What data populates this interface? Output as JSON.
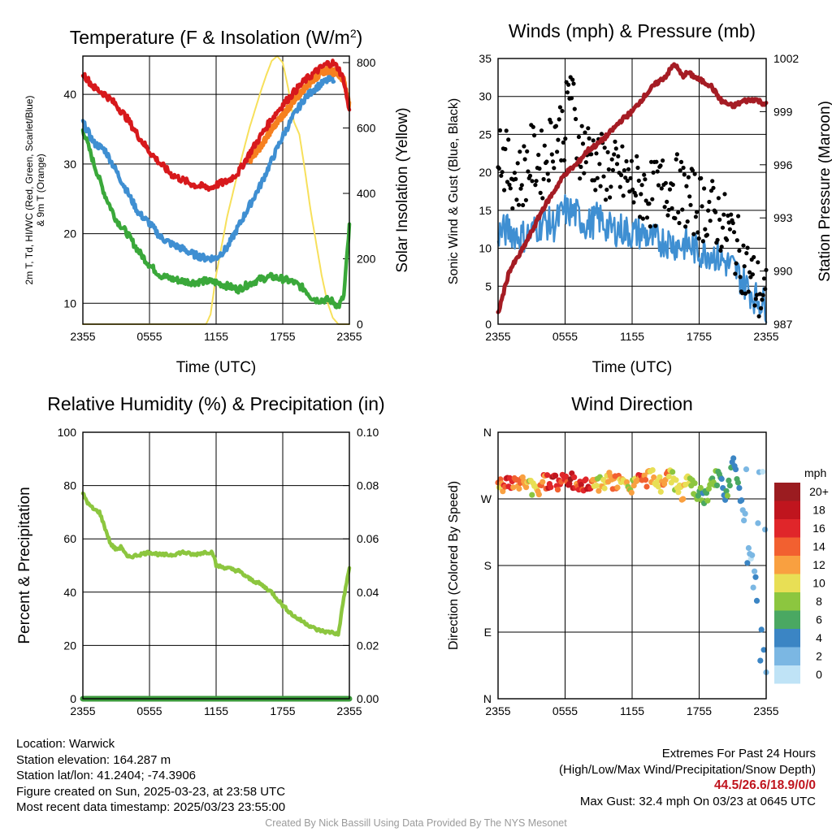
{
  "colors": {
    "red": "#d7191c",
    "scarlet": "#c0151e",
    "orange": "#f6801f",
    "blue": "#3f8fd2",
    "green": "#3aa83a",
    "yellow": "#f7e05b",
    "maroon": "#a51c24",
    "rh_green": "#8cc63f",
    "precip_green": "#3c9a3c",
    "credit_gray": "#9a9a9a"
  },
  "chart_data": [
    {
      "id": "temperature",
      "type": "line",
      "title": "Temperature (F) & Insolation (W/m²)",
      "xlabel": "Time (UTC)",
      "ylabel": "2m T, Td, HI/WC (Red, Green, Scarlet/Blue) & 9m T (Orange)",
      "y2label": "Solar Insolation (Yellow)",
      "xticks": [
        "2355",
        "0555",
        "1155",
        "1755",
        "2355"
      ],
      "ylim": [
        7,
        45.5
      ],
      "yticks": [
        10,
        20,
        30,
        40
      ],
      "y2lim": [
        0,
        820
      ],
      "y2ticks": [
        0,
        200,
        400,
        600,
        800
      ],
      "x_hours": [
        0,
        24
      ],
      "series": [
        {
          "name": "2m T",
          "axis": "left",
          "color": "red",
          "x": [
            0,
            1,
            2,
            3,
            4,
            5,
            6,
            7,
            8,
            9,
            10,
            11,
            11.6,
            12,
            13,
            14,
            15,
            16,
            17,
            18,
            19,
            20,
            21,
            22,
            22.5,
            23,
            23.5,
            24
          ],
          "y": [
            43,
            41,
            40,
            38.5,
            36.5,
            34,
            31.8,
            30,
            28.5,
            27.7,
            27,
            26.7,
            26.6,
            27,
            27.5,
            28.8,
            31.5,
            34,
            36.5,
            38.5,
            40.3,
            42,
            43.3,
            44.4,
            44.5,
            43.8,
            42,
            37.5
          ]
        },
        {
          "name": "9m T",
          "axis": "left",
          "color": "orange",
          "x": [
            15,
            16,
            17,
            18,
            19,
            20,
            21,
            22,
            23,
            23.5,
            24
          ],
          "y": [
            30.5,
            32.5,
            35,
            37,
            39,
            41,
            42.5,
            43.5,
            43,
            42,
            38.5
          ]
        },
        {
          "name": "HI/WC",
          "axis": "left",
          "color": "blue",
          "x": [
            0,
            1,
            2,
            3,
            4,
            5,
            6,
            7,
            8,
            9,
            10,
            11,
            12,
            13,
            14,
            15,
            16,
            17,
            18,
            19,
            20,
            21,
            22,
            22.6
          ],
          "y": [
            36,
            33,
            32,
            29,
            26,
            23,
            21.5,
            19.5,
            18.5,
            17.8,
            17,
            16.5,
            16.5,
            18,
            21,
            24,
            27,
            30.5,
            34,
            37,
            39.5,
            41,
            42,
            42.3
          ]
        },
        {
          "name": "Td",
          "axis": "left",
          "color": "green",
          "x": [
            0,
            1,
            2,
            3,
            4,
            5,
            6,
            7,
            8,
            9,
            10,
            11,
            12,
            13,
            14,
            15,
            16,
            17,
            18,
            19,
            20,
            20.5,
            21,
            22,
            22.5,
            23,
            23.5,
            23.7,
            24
          ],
          "y": [
            35,
            30,
            25.5,
            22,
            20,
            17.5,
            15.5,
            14,
            13.5,
            13.2,
            13,
            13.2,
            13,
            12.5,
            12,
            12.8,
            13.5,
            13.8,
            13.5,
            13,
            12,
            11,
            10.5,
            10.5,
            10.3,
            9.5,
            11,
            15,
            21
          ]
        },
        {
          "name": "Solar",
          "axis": "right",
          "color": "yellow",
          "x": [
            0,
            11.1,
            11.5,
            12,
            13,
            14,
            15,
            16,
            16.5,
            17,
            17.5,
            18,
            18.5,
            19,
            19.5,
            20,
            20.5,
            21,
            21.5,
            22,
            22.5,
            23,
            23.5,
            24
          ],
          "y": [
            0,
            0,
            30,
            150,
            330,
            470,
            600,
            710,
            760,
            805,
            820,
            800,
            720,
            620,
            580,
            470,
            350,
            250,
            150,
            70,
            20,
            0,
            0,
            0
          ]
        }
      ]
    },
    {
      "id": "winds",
      "type": "line",
      "title": "Winds (mph) & Pressure (mb)",
      "xlabel": "Time (UTC)",
      "ylabel": "Sonic Wind & Gust (Blue, Black)",
      "y2label": "Station Pressure (Maroon)",
      "xticks": [
        "2355",
        "0555",
        "1155",
        "1755",
        "2355"
      ],
      "ylim": [
        0,
        35
      ],
      "yticks": [
        0,
        5,
        10,
        15,
        20,
        25,
        30,
        35
      ],
      "y2lim": [
        987,
        1002
      ],
      "y2ticks": [
        987,
        990,
        993,
        996,
        999,
        1002
      ],
      "x_hours": [
        0,
        24
      ],
      "series": [
        {
          "name": "Sonic Wind",
          "axis": "left",
          "color": "blue",
          "style": "line",
          "x": [
            0,
            1,
            2,
            3,
            4,
            5,
            6,
            7,
            8,
            9,
            10,
            11,
            12,
            13,
            14,
            15,
            16,
            17,
            18,
            19,
            20,
            21,
            22,
            23,
            24
          ],
          "y": [
            12,
            12.5,
            11.5,
            12,
            13.5,
            13,
            15,
            14.5,
            13,
            14,
            12.5,
            12.5,
            12,
            12,
            11,
            11,
            10.5,
            10.5,
            9.5,
            9.5,
            8.5,
            7.5,
            5.5,
            3.5,
            2.5
          ]
        },
        {
          "name": "Gust",
          "axis": "left",
          "color": "black",
          "style": "scatter",
          "x": [
            0,
            1,
            2,
            3,
            4,
            5,
            6,
            6.5,
            7,
            8,
            9,
            10,
            11,
            12,
            13,
            14,
            15,
            16,
            17,
            18,
            19,
            20,
            21,
            22,
            23,
            24
          ],
          "y": [
            24,
            20,
            19,
            22,
            21,
            25,
            26,
            32.4,
            24,
            23,
            21,
            20,
            19.5,
            18.5,
            17.5,
            17,
            18.5,
            18,
            16.5,
            15.5,
            15,
            13.5,
            11.5,
            8,
            5,
            3
          ]
        },
        {
          "name": "Pressure",
          "axis": "right",
          "color": "maroon",
          "style": "line",
          "x": [
            0,
            1,
            2,
            3,
            4,
            5,
            6,
            7,
            8,
            9,
            10,
            11,
            12,
            13,
            14,
            15,
            15.8,
            16.5,
            17,
            18,
            19,
            20,
            21,
            22,
            23,
            24
          ],
          "y": [
            987.6,
            990,
            991,
            992.2,
            993.5,
            994.5,
            995.5,
            996,
            996.8,
            997.2,
            997.8,
            998.5,
            999,
            999.8,
            1000.5,
            1001,
            1001.7,
            1001,
            1001.2,
            1000.8,
            1000.5,
            999.6,
            999.3,
            999.6,
            999.7,
            999.4
          ]
        }
      ]
    },
    {
      "id": "humidity",
      "type": "line",
      "title": "Relative Humidity (%) & Precipitation (in)",
      "xlabel": "",
      "ylabel": "Percent & Precipitation",
      "xticks": [
        "2355",
        "0555",
        "1155",
        "1755",
        "2355"
      ],
      "ylim": [
        0,
        100
      ],
      "yticks": [
        0,
        20,
        40,
        60,
        80,
        100
      ],
      "y2lim": [
        0,
        0.1
      ],
      "y2ticks": [
        "0.00",
        "0.02",
        "0.04",
        "0.06",
        "0.08",
        "0.10"
      ],
      "x_hours": [
        0,
        24
      ],
      "series": [
        {
          "name": "RH",
          "axis": "left",
          "color": "rh_green",
          "x": [
            0,
            0.5,
            1,
            1.5,
            2,
            2.5,
            3,
            3.5,
            4,
            5,
            6,
            7,
            8,
            9,
            10,
            11,
            11.7,
            12,
            13,
            14,
            15,
            16,
            17,
            18,
            19,
            20,
            21,
            22,
            22.5,
            23,
            23.5,
            24
          ],
          "y": [
            77,
            73,
            71,
            70,
            64,
            58,
            56,
            57,
            53,
            54,
            55,
            54,
            54,
            55,
            54,
            55,
            55,
            50,
            49,
            48,
            45,
            43,
            40,
            35,
            31,
            28.5,
            26,
            25,
            25,
            24,
            38,
            49
          ]
        },
        {
          "name": "Precipitation",
          "axis": "right",
          "color": "precip_green",
          "x": [
            0,
            24
          ],
          "y": [
            0,
            0
          ]
        }
      ]
    },
    {
      "id": "wind_direction",
      "type": "scatter",
      "title": "Wind Direction",
      "xlabel": "",
      "ylabel": "Direction (Colored By Speed)",
      "xticks": [
        "2355",
        "0555",
        "1155",
        "1755",
        "2355"
      ],
      "ylim": [
        0,
        360
      ],
      "yticks": [
        "N",
        "E",
        "S",
        "W",
        "N"
      ],
      "x_hours": [
        0,
        24
      ],
      "colorbar": {
        "title": "mph",
        "labels": [
          "20+",
          "18",
          "16",
          "14",
          "12",
          "10",
          "8",
          "6",
          "4",
          "2",
          "0"
        ],
        "colors": [
          "#9b1c20",
          "#c0151e",
          "#e0262a",
          "#f26030",
          "#f9a040",
          "#e8df55",
          "#8cc63f",
          "#4aa862",
          "#3b85c4",
          "#7bb7e3",
          "#bfe3f6"
        ]
      },
      "series": [
        {
          "name": "Direction",
          "x": [
            0,
            0.5,
            1,
            1.5,
            2,
            2.5,
            3,
            3.5,
            4,
            4.5,
            5,
            5.5,
            6,
            6.5,
            7,
            7.5,
            8,
            8.5,
            9,
            9.5,
            10,
            10.5,
            11,
            11.5,
            12,
            12.5,
            13,
            13.5,
            14,
            14.5,
            15,
            15.5,
            16,
            16.5,
            17,
            17.5,
            18,
            18.5,
            19,
            19.5,
            20,
            20.5,
            21,
            21.5,
            22,
            22.3,
            22.6,
            23,
            23.2,
            23.5,
            23.8,
            24
          ],
          "y": [
            295,
            290,
            292,
            288,
            294,
            291,
            285,
            280,
            296,
            293,
            298,
            289,
            297,
            295,
            291,
            287,
            290,
            295,
            288,
            292,
            296,
            290,
            294,
            285,
            289,
            298,
            293,
            300,
            297,
            290,
            294,
            302,
            286,
            278,
            291,
            284,
            276,
            270,
            283,
            300,
            290,
            274,
            320,
            290,
            250,
            225,
            200,
            180,
            110,
            95,
            60,
            30
          ],
          "speed": [
            12,
            14,
            16,
            12,
            13,
            12,
            10,
            12,
            14,
            16,
            18,
            14,
            16,
            18,
            14,
            16,
            18,
            12,
            10,
            11,
            13,
            14,
            12,
            11,
            10,
            14,
            13,
            12,
            10,
            11,
            13,
            9,
            10,
            12,
            8,
            9,
            7,
            6,
            8,
            7,
            5,
            6,
            4,
            5,
            3,
            3,
            2,
            2,
            2,
            3,
            1,
            3
          ]
        }
      ]
    }
  ],
  "footer": {
    "location": "Location: Warwick",
    "elevation": "Station elevation: 164.287 m",
    "latlon": "Station lat/lon: 41.2404; -74.3906",
    "created": "Figure created on Sun, 2025-03-23, at 23:58 UTC",
    "recent": "Most recent data timestamp: 2025/03/23 23:55:00",
    "extremes_title": "Extremes For Past 24 Hours",
    "extremes_subtitle": "(High/Low/Max Wind/Precipitation/Snow Depth)",
    "extremes_values": "44.5/26.6/18.9/0/0",
    "max_gust": "Max Gust: 32.4 mph On 03/23 at 0645 UTC",
    "credit": "Created By Nick Bassill Using Data Provided By The NYS Mesonet"
  }
}
